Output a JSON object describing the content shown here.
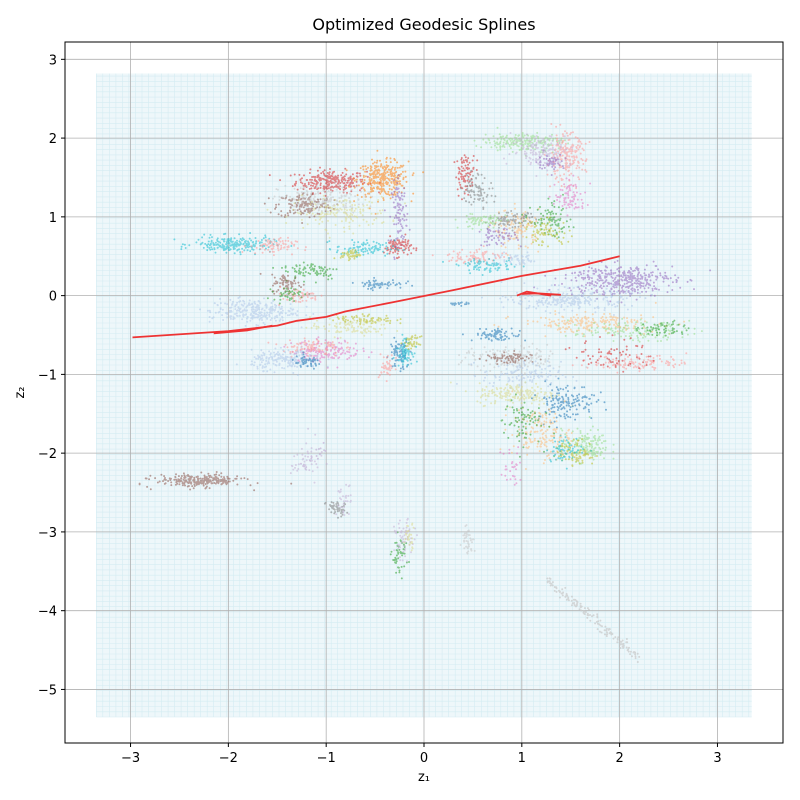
{
  "chart_data": {
    "type": "scatter",
    "title": "Optimized Geodesic Splines",
    "xlabel": "z₁",
    "ylabel": "z₂",
    "xlim": [
      -3.67,
      3.67
    ],
    "ylim": [
      -5.68,
      3.22
    ],
    "xticks": [
      -3,
      -2,
      -1,
      0,
      1,
      2,
      3
    ],
    "yticks": [
      -5,
      -4,
      -3,
      -2,
      -1,
      0,
      1,
      2,
      3
    ],
    "grid": true,
    "background_grid": {
      "x_range": [
        -3.35,
        3.35
      ],
      "y_range": [
        -5.35,
        2.82
      ],
      "color": "#d4ecf2"
    },
    "spline_color": "#ee3333",
    "clusters": [
      {
        "color": "#d62728",
        "cx": -0.95,
        "cy": 1.45,
        "sx": 0.18,
        "sy": 0.07,
        "n": 260
      },
      {
        "color": "#ff7f0e",
        "cx": -0.42,
        "cy": 1.48,
        "sx": 0.13,
        "sy": 0.11,
        "n": 320
      },
      {
        "color": "#8c564b",
        "cx": -1.22,
        "cy": 1.15,
        "sx": 0.14,
        "sy": 0.08,
        "n": 160
      },
      {
        "color": "#c7c7c7",
        "cx": -1.05,
        "cy": 1.22,
        "sx": 0.22,
        "sy": 0.09,
        "n": 160
      },
      {
        "color": "#dbdb8d",
        "cx": -0.85,
        "cy": 1.05,
        "sx": 0.25,
        "sy": 0.1,
        "n": 150
      },
      {
        "color": "#9467bd",
        "cx": -0.25,
        "cy": 1.05,
        "sx": 0.04,
        "sy": 0.2,
        "n": 100
      },
      {
        "color": "#d62728",
        "cx": -0.27,
        "cy": 0.62,
        "sx": 0.07,
        "sy": 0.06,
        "n": 90
      },
      {
        "color": "#17becf",
        "cx": -1.95,
        "cy": 0.65,
        "sx": 0.2,
        "sy": 0.05,
        "n": 220
      },
      {
        "color": "#ff9896",
        "cx": -1.55,
        "cy": 0.63,
        "sx": 0.12,
        "sy": 0.05,
        "n": 80
      },
      {
        "color": "#17becf",
        "cx": -0.6,
        "cy": 0.6,
        "sx": 0.15,
        "sy": 0.05,
        "n": 90
      },
      {
        "color": "#bcbd22",
        "cx": -0.75,
        "cy": 0.52,
        "sx": 0.05,
        "sy": 0.03,
        "n": 50
      },
      {
        "color": "#2ca02c",
        "cx": -1.15,
        "cy": 0.32,
        "sx": 0.15,
        "sy": 0.06,
        "n": 80
      },
      {
        "color": "#8c564b",
        "cx": -1.4,
        "cy": 0.15,
        "sx": 0.08,
        "sy": 0.06,
        "n": 70
      },
      {
        "color": "#1f77b4",
        "cx": -0.45,
        "cy": 0.15,
        "sx": 0.12,
        "sy": 0.03,
        "n": 60
      },
      {
        "color": "#ff9896",
        "cx": -1.3,
        "cy": 0.0,
        "sx": 0.12,
        "sy": 0.05,
        "n": 60
      },
      {
        "color": "#2ca02c",
        "cx": -1.4,
        "cy": 0.02,
        "sx": 0.07,
        "sy": 0.04,
        "n": 40
      },
      {
        "color": "#aec7e8",
        "cx": -1.75,
        "cy": -0.2,
        "sx": 0.22,
        "sy": 0.08,
        "n": 260
      },
      {
        "color": "#dbdb8d",
        "cx": -0.75,
        "cy": -0.4,
        "sx": 0.2,
        "sy": 0.06,
        "n": 100
      },
      {
        "color": "#bcbd22",
        "cx": -0.6,
        "cy": -0.3,
        "sx": 0.15,
        "sy": 0.03,
        "n": 70
      },
      {
        "color": "#e377c2",
        "cx": -1.0,
        "cy": -0.7,
        "sx": 0.18,
        "sy": 0.07,
        "n": 140
      },
      {
        "color": "#ff9896",
        "cx": -1.15,
        "cy": -0.65,
        "sx": 0.15,
        "sy": 0.06,
        "n": 90
      },
      {
        "color": "#aec7e8",
        "cx": -1.4,
        "cy": -0.82,
        "sx": 0.18,
        "sy": 0.06,
        "n": 200
      },
      {
        "color": "#1f77b4",
        "cx": -1.2,
        "cy": -0.85,
        "sx": 0.08,
        "sy": 0.04,
        "n": 50
      },
      {
        "color": "#1f77b4",
        "cx": -0.25,
        "cy": -0.75,
        "sx": 0.05,
        "sy": 0.1,
        "n": 80
      },
      {
        "color": "#17becf",
        "cx": -0.2,
        "cy": -0.7,
        "sx": 0.04,
        "sy": 0.08,
        "n": 70
      },
      {
        "color": "#bcbd22",
        "cx": -0.12,
        "cy": -0.6,
        "sx": 0.04,
        "sy": 0.04,
        "n": 40
      },
      {
        "color": "#ff9896",
        "cx": -0.38,
        "cy": -0.9,
        "sx": 0.04,
        "sy": 0.08,
        "n": 40
      },
      {
        "color": "#8c564b",
        "cx": -2.3,
        "cy": -2.35,
        "sx": 0.22,
        "sy": 0.04,
        "n": 260
      },
      {
        "color": "#c5b0d5",
        "cx": -1.2,
        "cy": -2.1,
        "sx": 0.08,
        "sy": 0.15,
        "n": 40
      },
      {
        "color": "#7f7f7f",
        "cx": -0.9,
        "cy": -2.7,
        "sx": 0.05,
        "sy": 0.05,
        "n": 50
      },
      {
        "color": "#c5b0d5",
        "cx": -0.82,
        "cy": -2.6,
        "sx": 0.04,
        "sy": 0.1,
        "n": 30
      },
      {
        "color": "#2ca02c",
        "cx": -0.25,
        "cy": -3.3,
        "sx": 0.04,
        "sy": 0.12,
        "n": 50
      },
      {
        "color": "#c5b0d5",
        "cx": -0.2,
        "cy": -3.1,
        "sx": 0.05,
        "sy": 0.12,
        "n": 60
      },
      {
        "color": "#dbdb8d",
        "cx": -0.15,
        "cy": -3.05,
        "sx": 0.03,
        "sy": 0.08,
        "n": 30
      },
      {
        "color": "#c7c7c7",
        "cx": 0.45,
        "cy": -3.1,
        "sx": 0.03,
        "sy": 0.1,
        "n": 40
      },
      {
        "color": "#d62728",
        "cx": 0.42,
        "cy": 1.55,
        "sx": 0.05,
        "sy": 0.12,
        "n": 80
      },
      {
        "color": "#7f7f7f",
        "cx": 0.55,
        "cy": 1.35,
        "sx": 0.08,
        "sy": 0.1,
        "n": 80
      },
      {
        "color": "#98df8a",
        "cx": 1.0,
        "cy": 1.95,
        "sx": 0.2,
        "sy": 0.06,
        "n": 200
      },
      {
        "color": "#ff9896",
        "cx": 1.45,
        "cy": 1.75,
        "sx": 0.1,
        "sy": 0.15,
        "n": 200
      },
      {
        "color": "#c5b0d5",
        "cx": 1.2,
        "cy": 1.85,
        "sx": 0.15,
        "sy": 0.1,
        "n": 150
      },
      {
        "color": "#9467bd",
        "cx": 1.3,
        "cy": 1.7,
        "sx": 0.07,
        "sy": 0.05,
        "n": 60
      },
      {
        "color": "#e377c2",
        "cx": 1.5,
        "cy": 1.25,
        "sx": 0.08,
        "sy": 0.1,
        "n": 80
      },
      {
        "color": "#ffbb78",
        "cx": 0.95,
        "cy": 0.85,
        "sx": 0.12,
        "sy": 0.12,
        "n": 120
      },
      {
        "color": "#7f7f7f",
        "cx": 0.9,
        "cy": 0.95,
        "sx": 0.12,
        "sy": 0.05,
        "n": 80
      },
      {
        "color": "#2ca02c",
        "cx": 1.3,
        "cy": 0.95,
        "sx": 0.1,
        "sy": 0.1,
        "n": 80
      },
      {
        "color": "#98df8a",
        "cx": 0.6,
        "cy": 0.95,
        "sx": 0.12,
        "sy": 0.05,
        "n": 80
      },
      {
        "color": "#9467bd",
        "cx": 0.75,
        "cy": 0.75,
        "sx": 0.1,
        "sy": 0.06,
        "n": 60
      },
      {
        "color": "#bcbd22",
        "cx": 1.25,
        "cy": 0.8,
        "sx": 0.12,
        "sy": 0.08,
        "n": 70
      },
      {
        "color": "#ff9896",
        "cx": 0.55,
        "cy": 0.5,
        "sx": 0.15,
        "sy": 0.05,
        "n": 80
      },
      {
        "color": "#17becf",
        "cx": 0.65,
        "cy": 0.38,
        "sx": 0.15,
        "sy": 0.04,
        "n": 80
      },
      {
        "color": "#aec7e8",
        "cx": 0.95,
        "cy": 0.45,
        "sx": 0.12,
        "sy": 0.04,
        "n": 50
      },
      {
        "color": "#9467bd",
        "cx": 2.0,
        "cy": 0.2,
        "sx": 0.28,
        "sy": 0.1,
        "n": 380
      },
      {
        "color": "#aec7e8",
        "cx": 1.5,
        "cy": -0.05,
        "sx": 0.3,
        "sy": 0.07,
        "n": 260
      },
      {
        "color": "#ffbb78",
        "cx": 1.7,
        "cy": -0.35,
        "sx": 0.35,
        "sy": 0.06,
        "n": 200
      },
      {
        "color": "#98df8a",
        "cx": 2.1,
        "cy": -0.45,
        "sx": 0.3,
        "sy": 0.06,
        "n": 130
      },
      {
        "color": "#2ca02c",
        "cx": 2.45,
        "cy": -0.42,
        "sx": 0.12,
        "sy": 0.05,
        "n": 60
      },
      {
        "color": "#ff9896",
        "cx": 2.2,
        "cy": -0.85,
        "sx": 0.25,
        "sy": 0.05,
        "n": 110
      },
      {
        "color": "#d62728",
        "cx": 1.95,
        "cy": -0.75,
        "sx": 0.2,
        "sy": 0.1,
        "n": 70
      },
      {
        "color": "#1f77b4",
        "cx": 0.75,
        "cy": -0.5,
        "sx": 0.12,
        "sy": 0.04,
        "n": 80
      },
      {
        "color": "#c7c7c7",
        "cx": 0.9,
        "cy": -0.8,
        "sx": 0.25,
        "sy": 0.08,
        "n": 150
      },
      {
        "color": "#8c564b",
        "cx": 0.85,
        "cy": -0.8,
        "sx": 0.12,
        "sy": 0.04,
        "n": 70
      },
      {
        "color": "#aec7e8",
        "cx": 1.0,
        "cy": -1.0,
        "sx": 0.2,
        "sy": 0.08,
        "n": 120
      },
      {
        "color": "#dbdb8d",
        "cx": 0.95,
        "cy": -1.25,
        "sx": 0.2,
        "sy": 0.07,
        "n": 180
      },
      {
        "color": "#1f77b4",
        "cx": 1.45,
        "cy": -1.35,
        "sx": 0.15,
        "sy": 0.12,
        "n": 150
      },
      {
        "color": "#ffbb78",
        "cx": 1.2,
        "cy": -1.75,
        "sx": 0.15,
        "sy": 0.15,
        "n": 160
      },
      {
        "color": "#2ca02c",
        "cx": 1.0,
        "cy": -1.6,
        "sx": 0.1,
        "sy": 0.15,
        "n": 80
      },
      {
        "color": "#98df8a",
        "cx": 1.65,
        "cy": -1.9,
        "sx": 0.12,
        "sy": 0.1,
        "n": 150
      },
      {
        "color": "#bcbd22",
        "cx": 1.55,
        "cy": -2.0,
        "sx": 0.1,
        "sy": 0.08,
        "n": 80
      },
      {
        "color": "#17becf",
        "cx": 1.45,
        "cy": -1.95,
        "sx": 0.1,
        "sy": 0.08,
        "n": 60
      },
      {
        "color": "#e377c2",
        "cx": 0.9,
        "cy": -2.2,
        "sx": 0.06,
        "sy": 0.15,
        "n": 30
      },
      {
        "color": "#1f77b4",
        "cx": 0.35,
        "cy": -0.1,
        "sx": 0.05,
        "sy": 0.01,
        "n": 20
      }
    ],
    "streak_points": [
      {
        "color": "#c7c7c7",
        "x0": 1.25,
        "y0": -3.6,
        "x1": 2.2,
        "y1": -4.6,
        "n": 160
      },
      {
        "color": "#c5b0d5",
        "x0": -1.25,
        "y0": -2.2,
        "x1": -1.0,
        "y1": -1.9,
        "n": 20
      }
    ],
    "splines": [
      {
        "name": "",
        "x": [
          -2.98,
          -2.0,
          -1.5,
          -1.3,
          -1.0,
          -0.8,
          -0.3,
          0.3,
          1.0,
          1.6,
          2.0
        ],
        "y": [
          -0.53,
          -0.45,
          -0.38,
          -0.32,
          -0.27,
          -0.2,
          -0.08,
          0.07,
          0.25,
          0.38,
          0.5
        ]
      },
      {
        "name": "",
        "x": [
          -2.15,
          -1.8,
          -1.55
        ],
        "y": [
          -0.48,
          -0.44,
          -0.38
        ]
      },
      {
        "name": "",
        "x": [
          1.0,
          1.15,
          1.4
        ],
        "y": [
          0.02,
          0.03,
          0.01
        ]
      },
      {
        "name": "",
        "x": [
          0.95,
          1.05,
          1.3
        ],
        "y": [
          0.0,
          0.05,
          0.0
        ]
      }
    ]
  }
}
